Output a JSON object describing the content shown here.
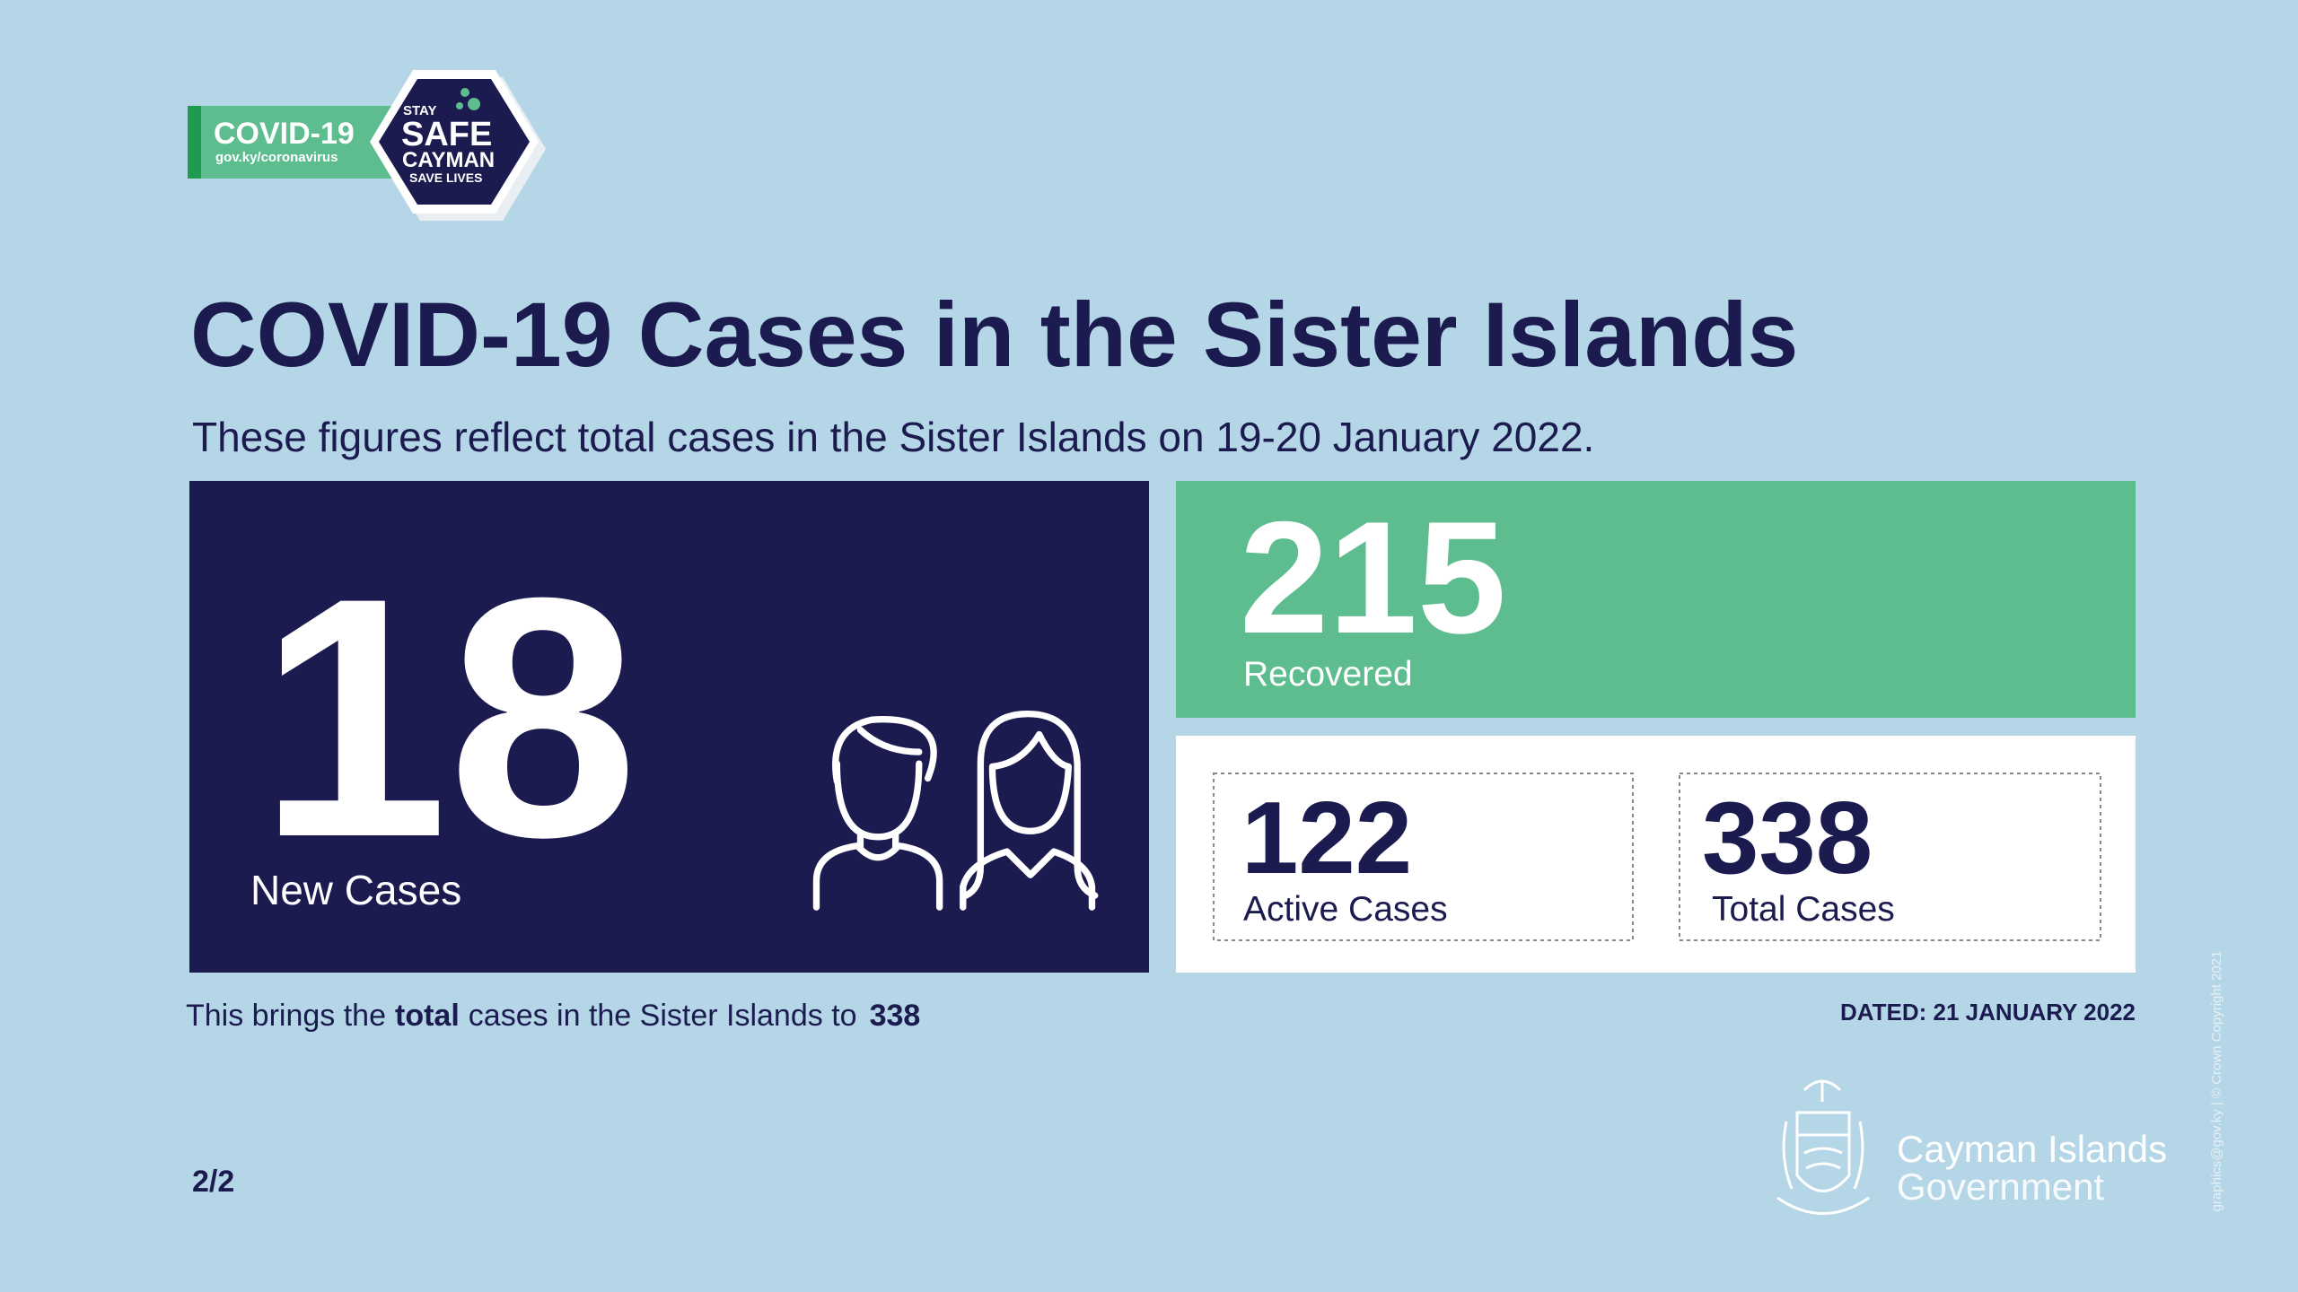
{
  "logo": {
    "badge": "COVID-19",
    "url": "gov.ky/coronavirus",
    "stay": "STAY",
    "safe": "SAFE",
    "cayman": "CAYMAN",
    "save": "SAVE LIVES"
  },
  "header": {
    "title": "COVID-19 Cases in the Sister Islands",
    "subtitle": "These figures reflect total cases in the Sister Islands on 19-20 January 2022."
  },
  "stats": {
    "new_cases": {
      "value": 18,
      "label": "New Cases"
    },
    "recovered": {
      "value": 215,
      "label": "Recovered"
    },
    "active": {
      "value": 122,
      "label": "Active Cases"
    },
    "total": {
      "value": 338,
      "label": "Total Cases"
    }
  },
  "footer": {
    "lead": "This brings the",
    "emphasis": "total",
    "rest": "cases in the Sister Islands to",
    "total": 338,
    "dated": "DATED: 21 JANUARY 2022",
    "page": "2/2"
  },
  "government": {
    "line1": "Cayman Islands",
    "line2": "Government"
  },
  "credit": "graphics@gov.ky | © Crown Copyright 2021"
}
